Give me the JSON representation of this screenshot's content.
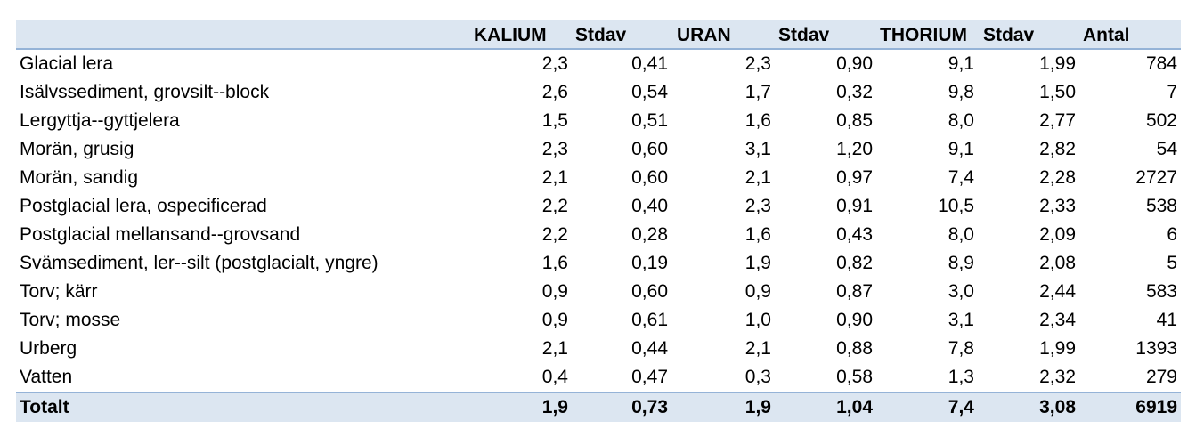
{
  "table": {
    "headers": [
      "",
      "KALIUM",
      "Stdav",
      "URAN",
      "Stdav",
      "THORIUM",
      "Stdav",
      "Antal"
    ],
    "rows": [
      [
        "Glacial lera",
        "2,3",
        "0,41",
        "2,3",
        "0,90",
        "9,1",
        "1,99",
        "784"
      ],
      [
        "Isälvssediment, grovsilt--block",
        "2,6",
        "0,54",
        "1,7",
        "0,32",
        "9,8",
        "1,50",
        "7"
      ],
      [
        "Lergyttja--gyttjelera",
        "1,5",
        "0,51",
        "1,6",
        "0,85",
        "8,0",
        "2,77",
        "502"
      ],
      [
        "Morän, grusig",
        "2,3",
        "0,60",
        "3,1",
        "1,20",
        "9,1",
        "2,82",
        "54"
      ],
      [
        "Morän, sandig",
        "2,1",
        "0,60",
        "2,1",
        "0,97",
        "7,4",
        "2,28",
        "2727"
      ],
      [
        "Postglacial lera, ospecificerad",
        "2,2",
        "0,40",
        "2,3",
        "0,91",
        "10,5",
        "2,33",
        "538"
      ],
      [
        "Postglacial mellansand--grovsand",
        "2,2",
        "0,28",
        "1,6",
        "0,43",
        "8,0",
        "2,09",
        "6"
      ],
      [
        "Svämsediment, ler--silt (postglacialt, yngre)",
        "1,6",
        "0,19",
        "1,9",
        "0,82",
        "8,9",
        "2,08",
        "5"
      ],
      [
        "Torv; kärr",
        "0,9",
        "0,60",
        "0,9",
        "0,87",
        "3,0",
        "2,44",
        "583"
      ],
      [
        "Torv; mosse",
        "0,9",
        "0,61",
        "1,0",
        "0,90",
        "3,1",
        "2,34",
        "41"
      ],
      [
        "Urberg",
        "2,1",
        "0,44",
        "2,1",
        "0,88",
        "7,8",
        "1,99",
        "1393"
      ],
      [
        "Vatten",
        "0,4",
        "0,47",
        "0,3",
        "0,58",
        "1,3",
        "2,32",
        "279"
      ]
    ],
    "total": [
      "Totalt",
      "1,9",
      "0,73",
      "1,9",
      "1,04",
      "7,4",
      "3,08",
      "6919"
    ]
  }
}
